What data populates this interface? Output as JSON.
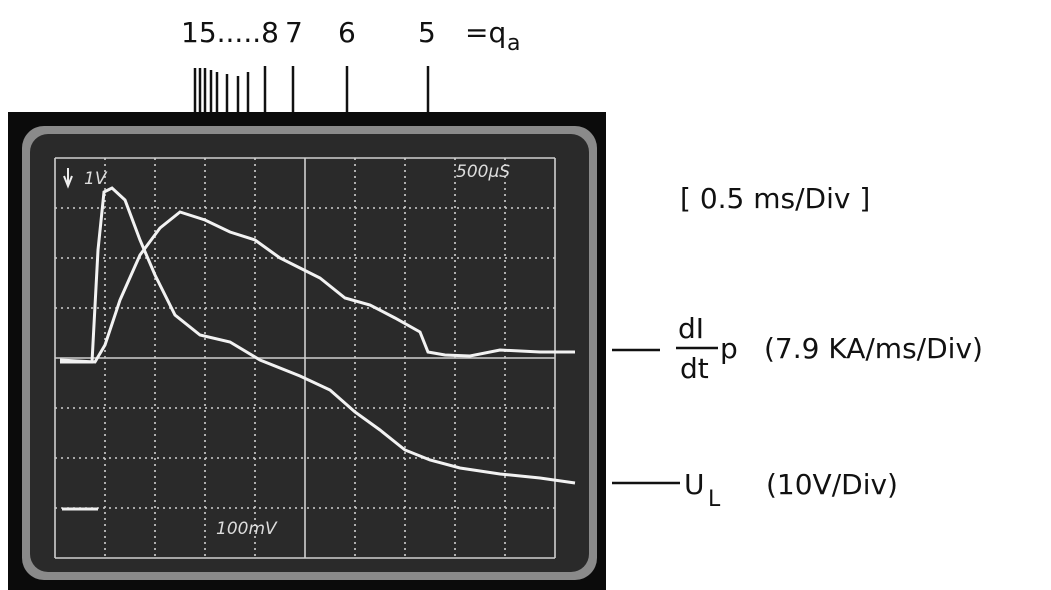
{
  "q_labels": {
    "items": [
      "15.....8",
      "7",
      "6",
      "5"
    ],
    "equals": "=q",
    "subscript": "a"
  },
  "screen": {
    "top_left": "1V",
    "top_right": "500µS",
    "bottom": "100mV"
  },
  "timebase": "[ 0.5 ms/Div ]",
  "traces": [
    {
      "numerator": "dI",
      "subscript": "p",
      "denominator": "dt",
      "scale": "(7.9 KA/ms/Div)"
    },
    {
      "symbol": "U",
      "subscript": "L",
      "scale": "(10V/Div)"
    }
  ]
}
